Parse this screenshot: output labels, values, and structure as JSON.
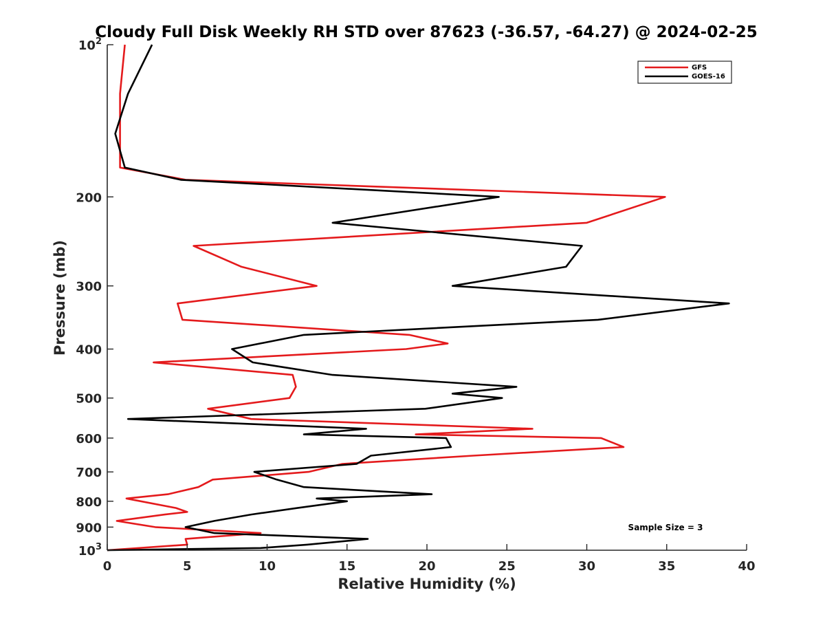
{
  "chart_data": {
    "type": "line",
    "orientation": "vertical-profile",
    "title": "Cloudy Full Disk Weekly RH STD over 87623 (-36.57, -64.27) @ 2024-02-25",
    "xlabel": "Relative Humidity (%)",
    "ylabel": "Pressure (mb)",
    "xlim": [
      0,
      40
    ],
    "ylim": [
      100,
      1000
    ],
    "yscale": "log",
    "y_reversed": true,
    "grid": false,
    "legend_position": "top-right",
    "x_ticks": [
      0,
      5,
      10,
      15,
      20,
      25,
      30,
      35,
      40
    ],
    "y_ticks": [
      {
        "value": 100,
        "base": "10",
        "exp": "2"
      },
      {
        "value": 200,
        "label": "200"
      },
      {
        "value": 300,
        "label": "300"
      },
      {
        "value": 400,
        "label": "400"
      },
      {
        "value": 500,
        "label": "500"
      },
      {
        "value": 600,
        "label": "600"
      },
      {
        "value": 700,
        "label": "700"
      },
      {
        "value": 800,
        "label": "800"
      },
      {
        "value": 900,
        "label": "900"
      },
      {
        "value": 1000,
        "base": "10",
        "exp": "3"
      }
    ],
    "annotation": "Sample Size = 3",
    "series": [
      {
        "name": "GFS",
        "color": "#e41a1c",
        "points": [
          [
            1.1,
            100
          ],
          [
            0.8,
            125
          ],
          [
            0.8,
            150
          ],
          [
            0.8,
            175
          ],
          [
            4.9,
            185
          ],
          [
            34.9,
            200
          ],
          [
            30.0,
            225
          ],
          [
            5.4,
            250
          ],
          [
            8.4,
            275
          ],
          [
            13.1,
            300
          ],
          [
            4.4,
            325
          ],
          [
            4.7,
            350
          ],
          [
            18.9,
            375
          ],
          [
            21.3,
            390
          ],
          [
            18.7,
            400
          ],
          [
            2.9,
            425
          ],
          [
            11.6,
            450
          ],
          [
            11.8,
            475
          ],
          [
            11.4,
            500
          ],
          [
            6.3,
            525
          ],
          [
            9.0,
            550
          ],
          [
            26.6,
            575
          ],
          [
            19.3,
            590
          ],
          [
            30.9,
            600
          ],
          [
            32.3,
            625
          ],
          [
            22.9,
            650
          ],
          [
            14.7,
            675
          ],
          [
            12.6,
            700
          ],
          [
            6.6,
            725
          ],
          [
            5.7,
            750
          ],
          [
            3.8,
            775
          ],
          [
            1.2,
            790
          ],
          [
            4.3,
            825
          ],
          [
            5.0,
            840
          ],
          [
            3.6,
            850
          ],
          [
            0.6,
            875
          ],
          [
            3.0,
            900
          ],
          [
            9.6,
            925
          ],
          [
            4.9,
            950
          ],
          [
            5.0,
            975
          ],
          [
            0.0,
            1000
          ]
        ]
      },
      {
        "name": "GOES-16",
        "color": "#000000",
        "points": [
          [
            2.8,
            100
          ],
          [
            1.3,
            125
          ],
          [
            0.5,
            150
          ],
          [
            1.1,
            175
          ],
          [
            4.6,
            185
          ],
          [
            24.5,
            200
          ],
          [
            14.1,
            225
          ],
          [
            29.7,
            250
          ],
          [
            28.7,
            275
          ],
          [
            21.6,
            300
          ],
          [
            38.9,
            325
          ],
          [
            30.7,
            350
          ],
          [
            12.3,
            375
          ],
          [
            7.8,
            400
          ],
          [
            9.1,
            425
          ],
          [
            14.1,
            450
          ],
          [
            25.6,
            475
          ],
          [
            21.6,
            490
          ],
          [
            24.7,
            500
          ],
          [
            19.9,
            525
          ],
          [
            1.3,
            550
          ],
          [
            16.2,
            575
          ],
          [
            12.3,
            590
          ],
          [
            21.2,
            600
          ],
          [
            21.5,
            625
          ],
          [
            16.5,
            650
          ],
          [
            15.6,
            675
          ],
          [
            9.2,
            700
          ],
          [
            10.6,
            725
          ],
          [
            12.3,
            750
          ],
          [
            20.3,
            775
          ],
          [
            13.1,
            790
          ],
          [
            15.0,
            800
          ],
          [
            11.9,
            825
          ],
          [
            9.0,
            850
          ],
          [
            6.7,
            875
          ],
          [
            4.9,
            900
          ],
          [
            6.7,
            925
          ],
          [
            16.3,
            950
          ],
          [
            12.5,
            975
          ],
          [
            9.6,
            990
          ],
          [
            0.0,
            1000
          ]
        ]
      }
    ]
  }
}
